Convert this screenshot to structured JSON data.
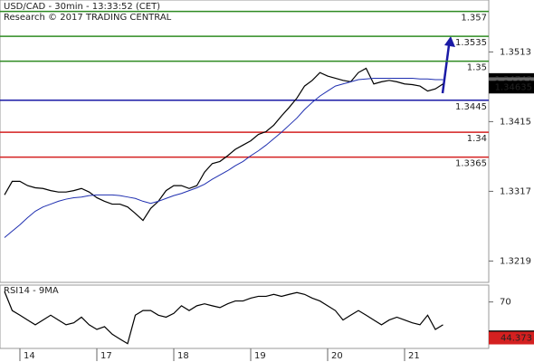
{
  "chart_data": [
    {
      "type": "line",
      "title": "USD/CAD - 30min - 13:33:52 (CET)",
      "subtitle": "Research © 2017 TRADING CENTRAL",
      "ylim": [
        1.3189,
        1.3586
      ],
      "yticks": [
        1.3219,
        1.3317,
        1.3415,
        1.3513
      ],
      "series": [
        {
          "color": "#000000",
          "values": [
            1.3312,
            1.3331,
            1.3331,
            1.3325,
            1.3322,
            1.3321,
            1.3318,
            1.3316,
            1.3316,
            1.3318,
            1.3321,
            1.3316,
            1.3308,
            1.3303,
            1.3299,
            1.3299,
            1.3295,
            1.3286,
            1.3276,
            1.3293,
            1.3303,
            1.3318,
            1.3325,
            1.3325,
            1.3321,
            1.3325,
            1.3344,
            1.3356,
            1.3359,
            1.3367,
            1.3376,
            1.3382,
            1.3388,
            1.3397,
            1.3401,
            1.341,
            1.3423,
            1.3435,
            1.3448,
            1.3465,
            1.3473,
            1.3484,
            1.3479,
            1.3476,
            1.3473,
            1.3471,
            1.3484,
            1.349,
            1.3468,
            1.3471,
            1.3473,
            1.3471,
            1.3468,
            1.3467,
            1.3465,
            1.3458,
            1.3461,
            1.3468
          ]
        },
        {
          "color": "#1f2fb0",
          "values": [
            1.3252,
            1.3261,
            1.327,
            1.328,
            1.3289,
            1.3295,
            1.3299,
            1.3303,
            1.3306,
            1.3308,
            1.3309,
            1.3311,
            1.3312,
            1.3312,
            1.3312,
            1.3311,
            1.3309,
            1.3307,
            1.3303,
            1.33,
            1.3303,
            1.3307,
            1.3311,
            1.3314,
            1.3318,
            1.3322,
            1.3327,
            1.3334,
            1.334,
            1.3346,
            1.3353,
            1.3359,
            1.3367,
            1.3374,
            1.3382,
            1.3391,
            1.34,
            1.341,
            1.342,
            1.3432,
            1.3442,
            1.3451,
            1.3458,
            1.3465,
            1.3468,
            1.3471,
            1.3474,
            1.3475,
            1.3476,
            1.3476,
            1.3476,
            1.3476,
            1.3476,
            1.3476,
            1.3475,
            1.3475,
            1.3474,
            1.3474
          ]
        }
      ],
      "levels": [
        {
          "value": 1.357,
          "color": "#2e8b22"
        },
        {
          "value": 1.3535,
          "color": "#2e8b22"
        },
        {
          "value": 1.35,
          "color": "#2e8b22"
        },
        {
          "value": 1.3445,
          "color": "#1a1aa6"
        },
        {
          "value": 1.34,
          "color": "#d42020"
        },
        {
          "value": 1.3365,
          "color": "#d42020"
        }
      ],
      "markers": [
        {
          "value": 1.34742,
          "color": "#000000"
        },
        {
          "value": 1.34684,
          "color": "#666666"
        },
        {
          "value": 1.34635,
          "color": "#000000"
        }
      ]
    },
    {
      "type": "line",
      "title": "RSI14 - 9MA",
      "ylim": [
        37,
        82
      ],
      "yticks": [
        70
      ],
      "categories": [
        null,
        null,
        "14",
        null,
        null,
        null,
        null,
        null,
        null,
        null,
        null,
        null,
        "17",
        null,
        null,
        null,
        null,
        null,
        null,
        null,
        null,
        null,
        "18",
        null,
        null,
        null,
        null,
        null,
        null,
        null,
        null,
        null,
        "19",
        null,
        null,
        null,
        null,
        null,
        null,
        null,
        null,
        null,
        "20",
        null,
        null,
        null,
        null,
        null,
        null,
        null,
        null,
        null,
        "21",
        null,
        null,
        null,
        null,
        null
      ],
      "series": [
        {
          "color": "#000000",
          "values": [
            77.4,
            63.9,
            60.6,
            57.2,
            53.8,
            57.2,
            60.6,
            57.2,
            53.8,
            55.2,
            59.2,
            53.8,
            50.5,
            52.5,
            47.1,
            43.7,
            40.4,
            60.6,
            63.9,
            63.9,
            60.6,
            59.2,
            61.9,
            67.3,
            63.9,
            67.3,
            68.7,
            67.3,
            66.0,
            68.7,
            70.7,
            70.7,
            72.7,
            74.0,
            74.0,
            75.4,
            74.0,
            75.4,
            76.7,
            75.4,
            72.7,
            70.7,
            67.3,
            63.9,
            57.2,
            60.6,
            63.9,
            60.6,
            57.2,
            53.8,
            57.2,
            59.2,
            57.2,
            55.2,
            53.8,
            60.6,
            50.5,
            53.8
          ]
        }
      ],
      "markers": [
        {
          "value": 45.2402,
          "color": "#000000"
        },
        {
          "value": 44.373,
          "color": "#d42020"
        }
      ]
    }
  ]
}
